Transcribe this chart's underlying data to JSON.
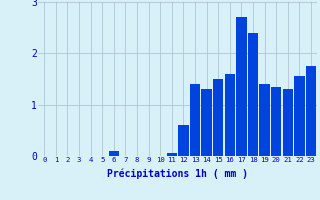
{
  "hours": [
    0,
    1,
    2,
    3,
    4,
    5,
    6,
    7,
    8,
    9,
    10,
    11,
    12,
    13,
    14,
    15,
    16,
    17,
    18,
    19,
    20,
    21,
    22,
    23
  ],
  "values": [
    0,
    0,
    0,
    0,
    0,
    0,
    0.1,
    0,
    0,
    0,
    0,
    0.05,
    0.6,
    1.4,
    1.3,
    1.5,
    1.6,
    2.7,
    2.4,
    1.4,
    1.35,
    1.3,
    1.55,
    1.75
  ],
  "bar_color": "#0044dd",
  "bg_color": "#d8f0f8",
  "grid_color": "#aabbcc",
  "xlabel": "Précipitations 1h ( mm )",
  "xlabel_color": "#0000cc",
  "tick_color": "#0000cc",
  "ylim": [
    0,
    3
  ],
  "yticks": [
    0,
    1,
    2,
    3
  ],
  "xlim": [
    -0.5,
    23.5
  ]
}
